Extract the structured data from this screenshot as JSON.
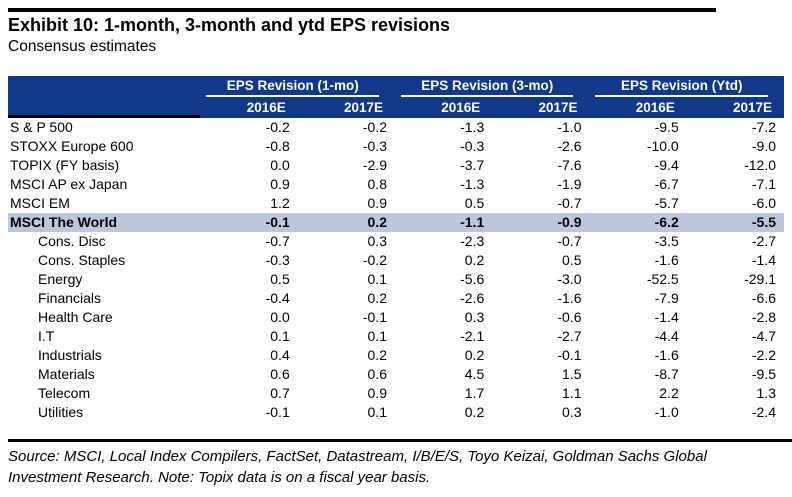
{
  "title": "Exhibit 10: 1-month, 3-month and ytd EPS revisions",
  "subtitle": "Consensus estimates",
  "colors": {
    "header_bg": "#12388C",
    "highlight_bg": "#BCC7DF",
    "rule": "#000000",
    "header_text": "#FFFFFF"
  },
  "table": {
    "groups": [
      {
        "label": "EPS Revision (1-mo)"
      },
      {
        "label": "EPS Revision (3-mo)"
      },
      {
        "label": "EPS Revision (Ytd)"
      }
    ],
    "year_headers": [
      "2016E",
      "2017E",
      "2016E",
      "2017E",
      "2016E",
      "2017E"
    ],
    "rows": [
      {
        "label": "S & P 500",
        "indent": false,
        "highlight": false,
        "values": [
          "-0.2",
          "-0.2",
          "-1.3",
          "-1.0",
          "-9.5",
          "-7.2"
        ]
      },
      {
        "label": "STOXX Europe 600",
        "indent": false,
        "highlight": false,
        "values": [
          "-0.8",
          "-0.3",
          "-0.3",
          "-2.6",
          "-10.0",
          "-9.0"
        ]
      },
      {
        "label": "TOPIX (FY basis)",
        "indent": false,
        "highlight": false,
        "values": [
          "0.0",
          "-2.9",
          "-3.7",
          "-7.6",
          "-9.4",
          "-12.0"
        ]
      },
      {
        "label": "MSCI AP ex Japan",
        "indent": false,
        "highlight": false,
        "values": [
          "0.9",
          "0.8",
          "-1.3",
          "-1.9",
          "-6.7",
          "-7.1"
        ]
      },
      {
        "label": "MSCI EM",
        "indent": false,
        "highlight": false,
        "values": [
          "1.2",
          "0.9",
          "0.5",
          "-0.7",
          "-5.7",
          "-6.0"
        ]
      },
      {
        "label": "MSCI The World",
        "indent": false,
        "highlight": true,
        "values": [
          "-0.1",
          "0.2",
          "-1.1",
          "-0.9",
          "-6.2",
          "-5.5"
        ]
      },
      {
        "label": "Cons. Disc",
        "indent": true,
        "highlight": false,
        "values": [
          "-0.7",
          "0.3",
          "-2.3",
          "-0.7",
          "-3.5",
          "-2.7"
        ]
      },
      {
        "label": "Cons. Staples",
        "indent": true,
        "highlight": false,
        "values": [
          "-0.3",
          "-0.2",
          "0.2",
          "0.5",
          "-1.6",
          "-1.4"
        ]
      },
      {
        "label": "Energy",
        "indent": true,
        "highlight": false,
        "values": [
          "0.5",
          "0.1",
          "-5.6",
          "-3.0",
          "-52.5",
          "-29.1"
        ]
      },
      {
        "label": "Financials",
        "indent": true,
        "highlight": false,
        "values": [
          "-0.4",
          "0.2",
          "-2.6",
          "-1.6",
          "-7.9",
          "-6.6"
        ]
      },
      {
        "label": "Health Care",
        "indent": true,
        "highlight": false,
        "values": [
          "0.0",
          "-0.1",
          "0.3",
          "-0.6",
          "-1.4",
          "-2.8"
        ]
      },
      {
        "label": "I.T",
        "indent": true,
        "highlight": false,
        "values": [
          "0.1",
          "0.1",
          "-2.1",
          "-2.7",
          "-4.4",
          "-4.7"
        ]
      },
      {
        "label": "Industrials",
        "indent": true,
        "highlight": false,
        "values": [
          "0.4",
          "0.2",
          "0.2",
          "-0.1",
          "-1.6",
          "-2.2"
        ]
      },
      {
        "label": "Materials",
        "indent": true,
        "highlight": false,
        "values": [
          "0.6",
          "0.6",
          "4.5",
          "1.5",
          "-8.7",
          "-9.5"
        ]
      },
      {
        "label": "Telecom",
        "indent": true,
        "highlight": false,
        "values": [
          "0.7",
          "0.9",
          "1.7",
          "1.1",
          "2.2",
          "1.3"
        ]
      },
      {
        "label": "Utilities",
        "indent": true,
        "highlight": false,
        "values": [
          "-0.1",
          "0.1",
          "0.2",
          "0.3",
          "-1.0",
          "-2.4"
        ]
      }
    ]
  },
  "footer": {
    "text": "Source: MSCI, Local Index Compilers, FactSet, Datastream, I/B/E/S, Toyo Keizai, Goldman Sachs Global Investment Research. Note: Topix data is on a fiscal year basis."
  }
}
